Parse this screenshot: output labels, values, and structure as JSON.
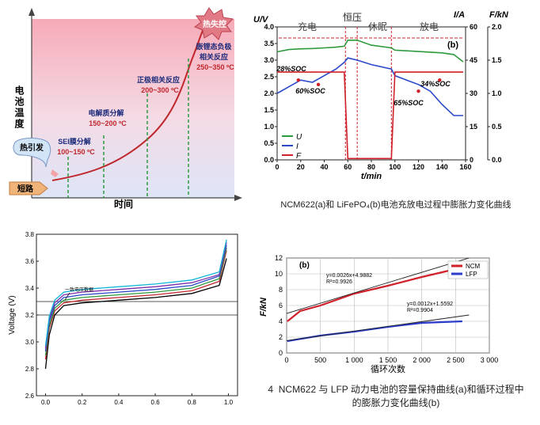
{
  "panels": {
    "thermal": {
      "ylabel": "电池温度",
      "xlabel": "时间",
      "stages": [
        {
          "label": "短路"
        },
        {
          "label": "热引发"
        },
        {
          "name": "SEI膜分解",
          "range": "100~150 ºC"
        },
        {
          "name": "电解质分解",
          "range": "150~200 ºC"
        },
        {
          "name": "正极相关反应",
          "range": "200~300 ºC"
        },
        {
          "name": "嵌锂态负极\n相关反应",
          "range": "250~350 ºC"
        },
        {
          "label": "热失控"
        }
      ],
      "colors": {
        "curve": "#c0272d",
        "marker": "#2e9a3e",
        "bg_top": "#f7b6c0",
        "bg_bottom": "#dfe6f7"
      }
    },
    "swelling": {
      "caption": "NCM622(a)和 LiFePO₄(b)电池充放电过程中膨胀力变化曲线",
      "panel_label": "(b)",
      "phase_labels": [
        "充电",
        "恒压",
        "休眠",
        "放电"
      ],
      "axis_left_title": "U/V",
      "axis_right_title_i": "I/A",
      "axis_right_title_f": "F/kN",
      "xlabel": "t/min",
      "annotations": [
        "28%SOC",
        "60%SOC",
        "34%SOC",
        "65%SOC"
      ],
      "legend": [
        "U",
        "I",
        "F"
      ]
    },
    "voltage": {
      "ylabel": "Voltage (V)",
      "annotation": "一致电压数据",
      "colors": [
        "#000000",
        "#c0272d",
        "#2e9a3e",
        "#2a49c8",
        "#7b2fa8",
        "#12b6d8"
      ]
    },
    "cycle": {
      "panel_label": "(b)",
      "ylabel": "F/kN",
      "xlabel": "循环次数",
      "caption": "4  NCM622 与 LFP 动力电池的容量保持曲线(a)和循环过程中\n的膨胀力变化曲线(b)",
      "legend": [
        {
          "name": "NCM",
          "color": "#d0202a"
        },
        {
          "name": "LFP",
          "color": "#2a3cc8"
        }
      ],
      "eq_ncm": [
        "y=0.0026x+4.9882",
        "R²=0.9926"
      ],
      "eq_lfp": [
        "y=0.0012x+1.5592",
        "R²=0.9904"
      ]
    }
  },
  "chart_data": [
    {
      "type": "line",
      "title": "",
      "xlabel": "时间",
      "ylabel": "电池温度",
      "series": [
        {
          "values": [
            0.08,
            0.12,
            0.18,
            0.27,
            0.42,
            0.62,
            0.85,
            1.0
          ]
        }
      ]
    },
    {
      "type": "line",
      "xlabel": "t/min",
      "x": [
        0,
        10,
        20,
        30,
        40,
        50,
        57,
        60,
        68,
        80,
        97,
        100,
        110,
        120,
        130,
        140,
        150,
        158
      ],
      "xlim": [
        0,
        160
      ],
      "ylim_left": [
        0,
        4.0
      ],
      "ylim_right_I": [
        0,
        60
      ],
      "ylim_right_F": [
        0,
        2.0
      ],
      "series": [
        {
          "name": "U",
          "axis": "left",
          "values": [
            3.25,
            3.32,
            3.34,
            3.35,
            3.37,
            3.39,
            3.42,
            3.6,
            3.6,
            3.45,
            3.37,
            3.3,
            3.28,
            3.26,
            3.24,
            3.22,
            3.17,
            2.95
          ]
        },
        {
          "name": "I",
          "axis": "right_I",
          "values": [
            30,
            33,
            36,
            35,
            38,
            41,
            44,
            46,
            45,
            43,
            41,
            38,
            36,
            34,
            31,
            25,
            20,
            20
          ]
        },
        {
          "name": "F",
          "axis": "right_F",
          "values": [
            1.32,
            1.32,
            1.32,
            1.32,
            1.32,
            1.32,
            1.32,
            0.02,
            0.02,
            0.02,
            0.02,
            1.32,
            1.32,
            1.32,
            1.32,
            1.32,
            1.32,
            1.32
          ]
        }
      ]
    },
    {
      "type": "line",
      "ylabel": "Voltage (V)",
      "ylim": [
        2.6,
        3.8
      ],
      "xlim": [
        -0.05,
        1.05
      ],
      "yticks": [
        "2.6",
        "2.8",
        "3.0",
        "3.2",
        "3.4",
        "3.6",
        "3.8"
      ],
      "xticks": [
        "0.0",
        "0.2",
        "0.4",
        "0.6",
        "0.8",
        "1.0"
      ],
      "reference_lines": [
        3.2,
        3.3
      ],
      "series": [
        {
          "values": [
            [
              0.0,
              2.8
            ],
            [
              0.02,
              3.05
            ],
            [
              0.05,
              3.2
            ],
            [
              0.1,
              3.27
            ],
            [
              0.2,
              3.29
            ],
            [
              0.4,
              3.31
            ],
            [
              0.6,
              3.33
            ],
            [
              0.8,
              3.36
            ],
            [
              0.95,
              3.42
            ],
            [
              0.99,
              3.62
            ]
          ]
        },
        {
          "values": [
            [
              0.0,
              2.87
            ],
            [
              0.02,
              3.1
            ],
            [
              0.05,
              3.23
            ],
            [
              0.1,
              3.29
            ],
            [
              0.2,
              3.31
            ],
            [
              0.4,
              3.33
            ],
            [
              0.6,
              3.35
            ],
            [
              0.8,
              3.38
            ],
            [
              0.95,
              3.45
            ],
            [
              0.99,
              3.68
            ]
          ]
        },
        {
          "values": [
            [
              0.0,
              2.9
            ],
            [
              0.02,
              3.12
            ],
            [
              0.05,
              3.25
            ],
            [
              0.1,
              3.31
            ],
            [
              0.2,
              3.33
            ],
            [
              0.4,
              3.35
            ],
            [
              0.6,
              3.37
            ],
            [
              0.8,
              3.4
            ],
            [
              0.95,
              3.47
            ],
            [
              0.99,
              3.7
            ]
          ]
        },
        {
          "values": [
            [
              0.0,
              2.93
            ],
            [
              0.02,
              3.15
            ],
            [
              0.05,
              3.27
            ],
            [
              0.1,
              3.33
            ],
            [
              0.2,
              3.35
            ],
            [
              0.4,
              3.37
            ],
            [
              0.6,
              3.39
            ],
            [
              0.8,
              3.42
            ],
            [
              0.95,
              3.49
            ],
            [
              0.99,
              3.72
            ]
          ]
        },
        {
          "values": [
            [
              0.0,
              2.95
            ],
            [
              0.02,
              3.17
            ],
            [
              0.05,
              3.29
            ],
            [
              0.1,
              3.35
            ],
            [
              0.2,
              3.37
            ],
            [
              0.4,
              3.39
            ],
            [
              0.6,
              3.41
            ],
            [
              0.8,
              3.44
            ],
            [
              0.95,
              3.5
            ],
            [
              0.99,
              3.74
            ]
          ]
        },
        {
          "values": [
            [
              0.0,
              2.97
            ],
            [
              0.02,
              3.19
            ],
            [
              0.05,
              3.31
            ],
            [
              0.1,
              3.37
            ],
            [
              0.2,
              3.39
            ],
            [
              0.4,
              3.41
            ],
            [
              0.6,
              3.43
            ],
            [
              0.8,
              3.46
            ],
            [
              0.95,
              3.52
            ],
            [
              0.99,
              3.76
            ]
          ]
        }
      ]
    },
    {
      "type": "scatter",
      "xlabel": "循环次数",
      "ylabel": "F/kN",
      "xlim": [
        0,
        3000
      ],
      "ylim": [
        0,
        12
      ],
      "xticks": [
        "0",
        "500",
        "1 000",
        "1 500",
        "2 000",
        "2 500",
        "3 000"
      ],
      "yticks": [
        "0",
        "2",
        "4",
        "6",
        "8",
        "10",
        "12"
      ],
      "series": [
        {
          "name": "NCM",
          "x": [
            10,
            200,
            500,
            1000,
            1500,
            2000,
            2500
          ],
          "values": [
            4.0,
            5.3,
            6.0,
            7.5,
            8.5,
            9.6,
            10.6
          ]
        },
        {
          "name": "LFP",
          "x": [
            10,
            500,
            1000,
            1500,
            2000,
            2600
          ],
          "values": [
            1.5,
            2.2,
            2.7,
            3.3,
            3.8,
            4.0
          ]
        }
      ]
    }
  ]
}
